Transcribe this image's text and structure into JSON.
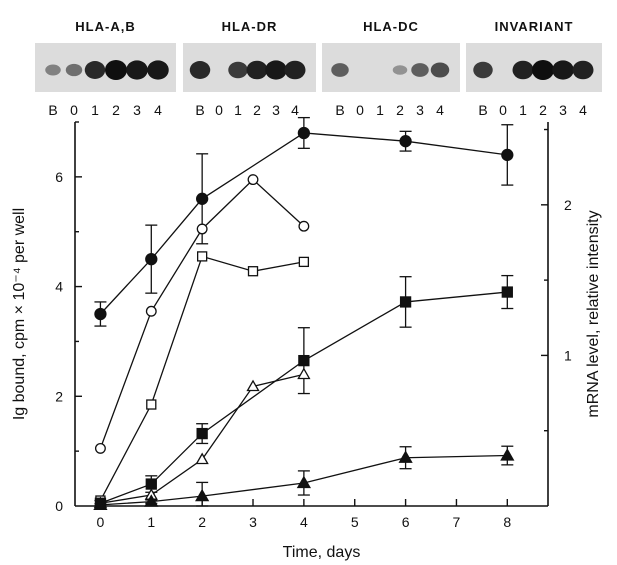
{
  "blots": [
    {
      "title": "HLA-A,B",
      "lanes": [
        "B",
        "0",
        "1",
        "2",
        "3",
        "4"
      ],
      "intensity": [
        0.35,
        0.45,
        0.85,
        1.0,
        0.95,
        0.95
      ]
    },
    {
      "title": "HLA-DR",
      "lanes": [
        "B",
        "0",
        "1",
        "2",
        "3",
        "4"
      ],
      "intensity": [
        0.85,
        0.0,
        0.75,
        0.9,
        0.95,
        0.9
      ]
    },
    {
      "title": "HLA-DC",
      "lanes": [
        "B",
        "0",
        "1",
        "2",
        "3",
        "4"
      ],
      "intensity": [
        0.55,
        0.0,
        0.0,
        0.25,
        0.55,
        0.65
      ]
    },
    {
      "title": "INVARIANT",
      "lanes": [
        "B",
        "0",
        "1",
        "2",
        "3",
        "4"
      ],
      "intensity": [
        0.75,
        0.0,
        0.9,
        1.0,
        0.95,
        0.9
      ]
    }
  ],
  "chart_data": {
    "type": "line",
    "xlabel": "Time, days",
    "ylabel_left": "Ig bound, cpm × 10⁻⁴ per well",
    "ylabel_right": "mRNA level, relative intensity",
    "xlim": [
      -0.5,
      8.8
    ],
    "ylim_left": [
      0,
      7
    ],
    "ylim_right": [
      0,
      2.55
    ],
    "x_ticks": [
      "0",
      "1",
      "2",
      "3",
      "4",
      "5",
      "6",
      "7",
      "8"
    ],
    "y_ticks_left": [
      "0",
      "2",
      "4",
      "6"
    ],
    "y_ticks_right": [
      "1",
      "2"
    ],
    "series": [
      {
        "marker": "filled-circle",
        "axis": "left",
        "x": [
          0,
          1,
          2,
          4,
          6,
          8
        ],
        "y": [
          3.5,
          4.5,
          5.6,
          6.8,
          6.65,
          6.4
        ],
        "err": [
          0.22,
          0.62,
          0.82,
          0.28,
          0.18,
          0.55
        ]
      },
      {
        "marker": "open-circle",
        "axis": "left",
        "x": [
          0,
          1,
          2,
          3,
          4
        ],
        "y": [
          1.05,
          3.55,
          5.05,
          5.95,
          5.1
        ]
      },
      {
        "marker": "open-square",
        "axis": "left",
        "x": [
          0,
          1,
          2,
          3,
          4
        ],
        "y": [
          0.1,
          1.85,
          4.55,
          4.28,
          4.45
        ]
      },
      {
        "marker": "filled-square",
        "axis": "left",
        "x": [
          0,
          1,
          2,
          4,
          6,
          8
        ],
        "y": [
          0.05,
          0.4,
          1.32,
          2.65,
          3.72,
          3.9
        ],
        "err": [
          0.05,
          0.15,
          0.18,
          0.6,
          0.46,
          0.3
        ]
      },
      {
        "marker": "open-triangle",
        "axis": "left",
        "x": [
          0,
          1,
          2,
          3,
          4
        ],
        "y": [
          0.05,
          0.2,
          0.85,
          2.18,
          2.4
        ]
      },
      {
        "marker": "filled-triangle",
        "axis": "left",
        "x": [
          0,
          1,
          2,
          4,
          6,
          8
        ],
        "y": [
          0.02,
          0.08,
          0.18,
          0.42,
          0.88,
          0.92
        ],
        "err": [
          0.02,
          0.03,
          0.25,
          0.22,
          0.2,
          0.17
        ]
      }
    ]
  }
}
